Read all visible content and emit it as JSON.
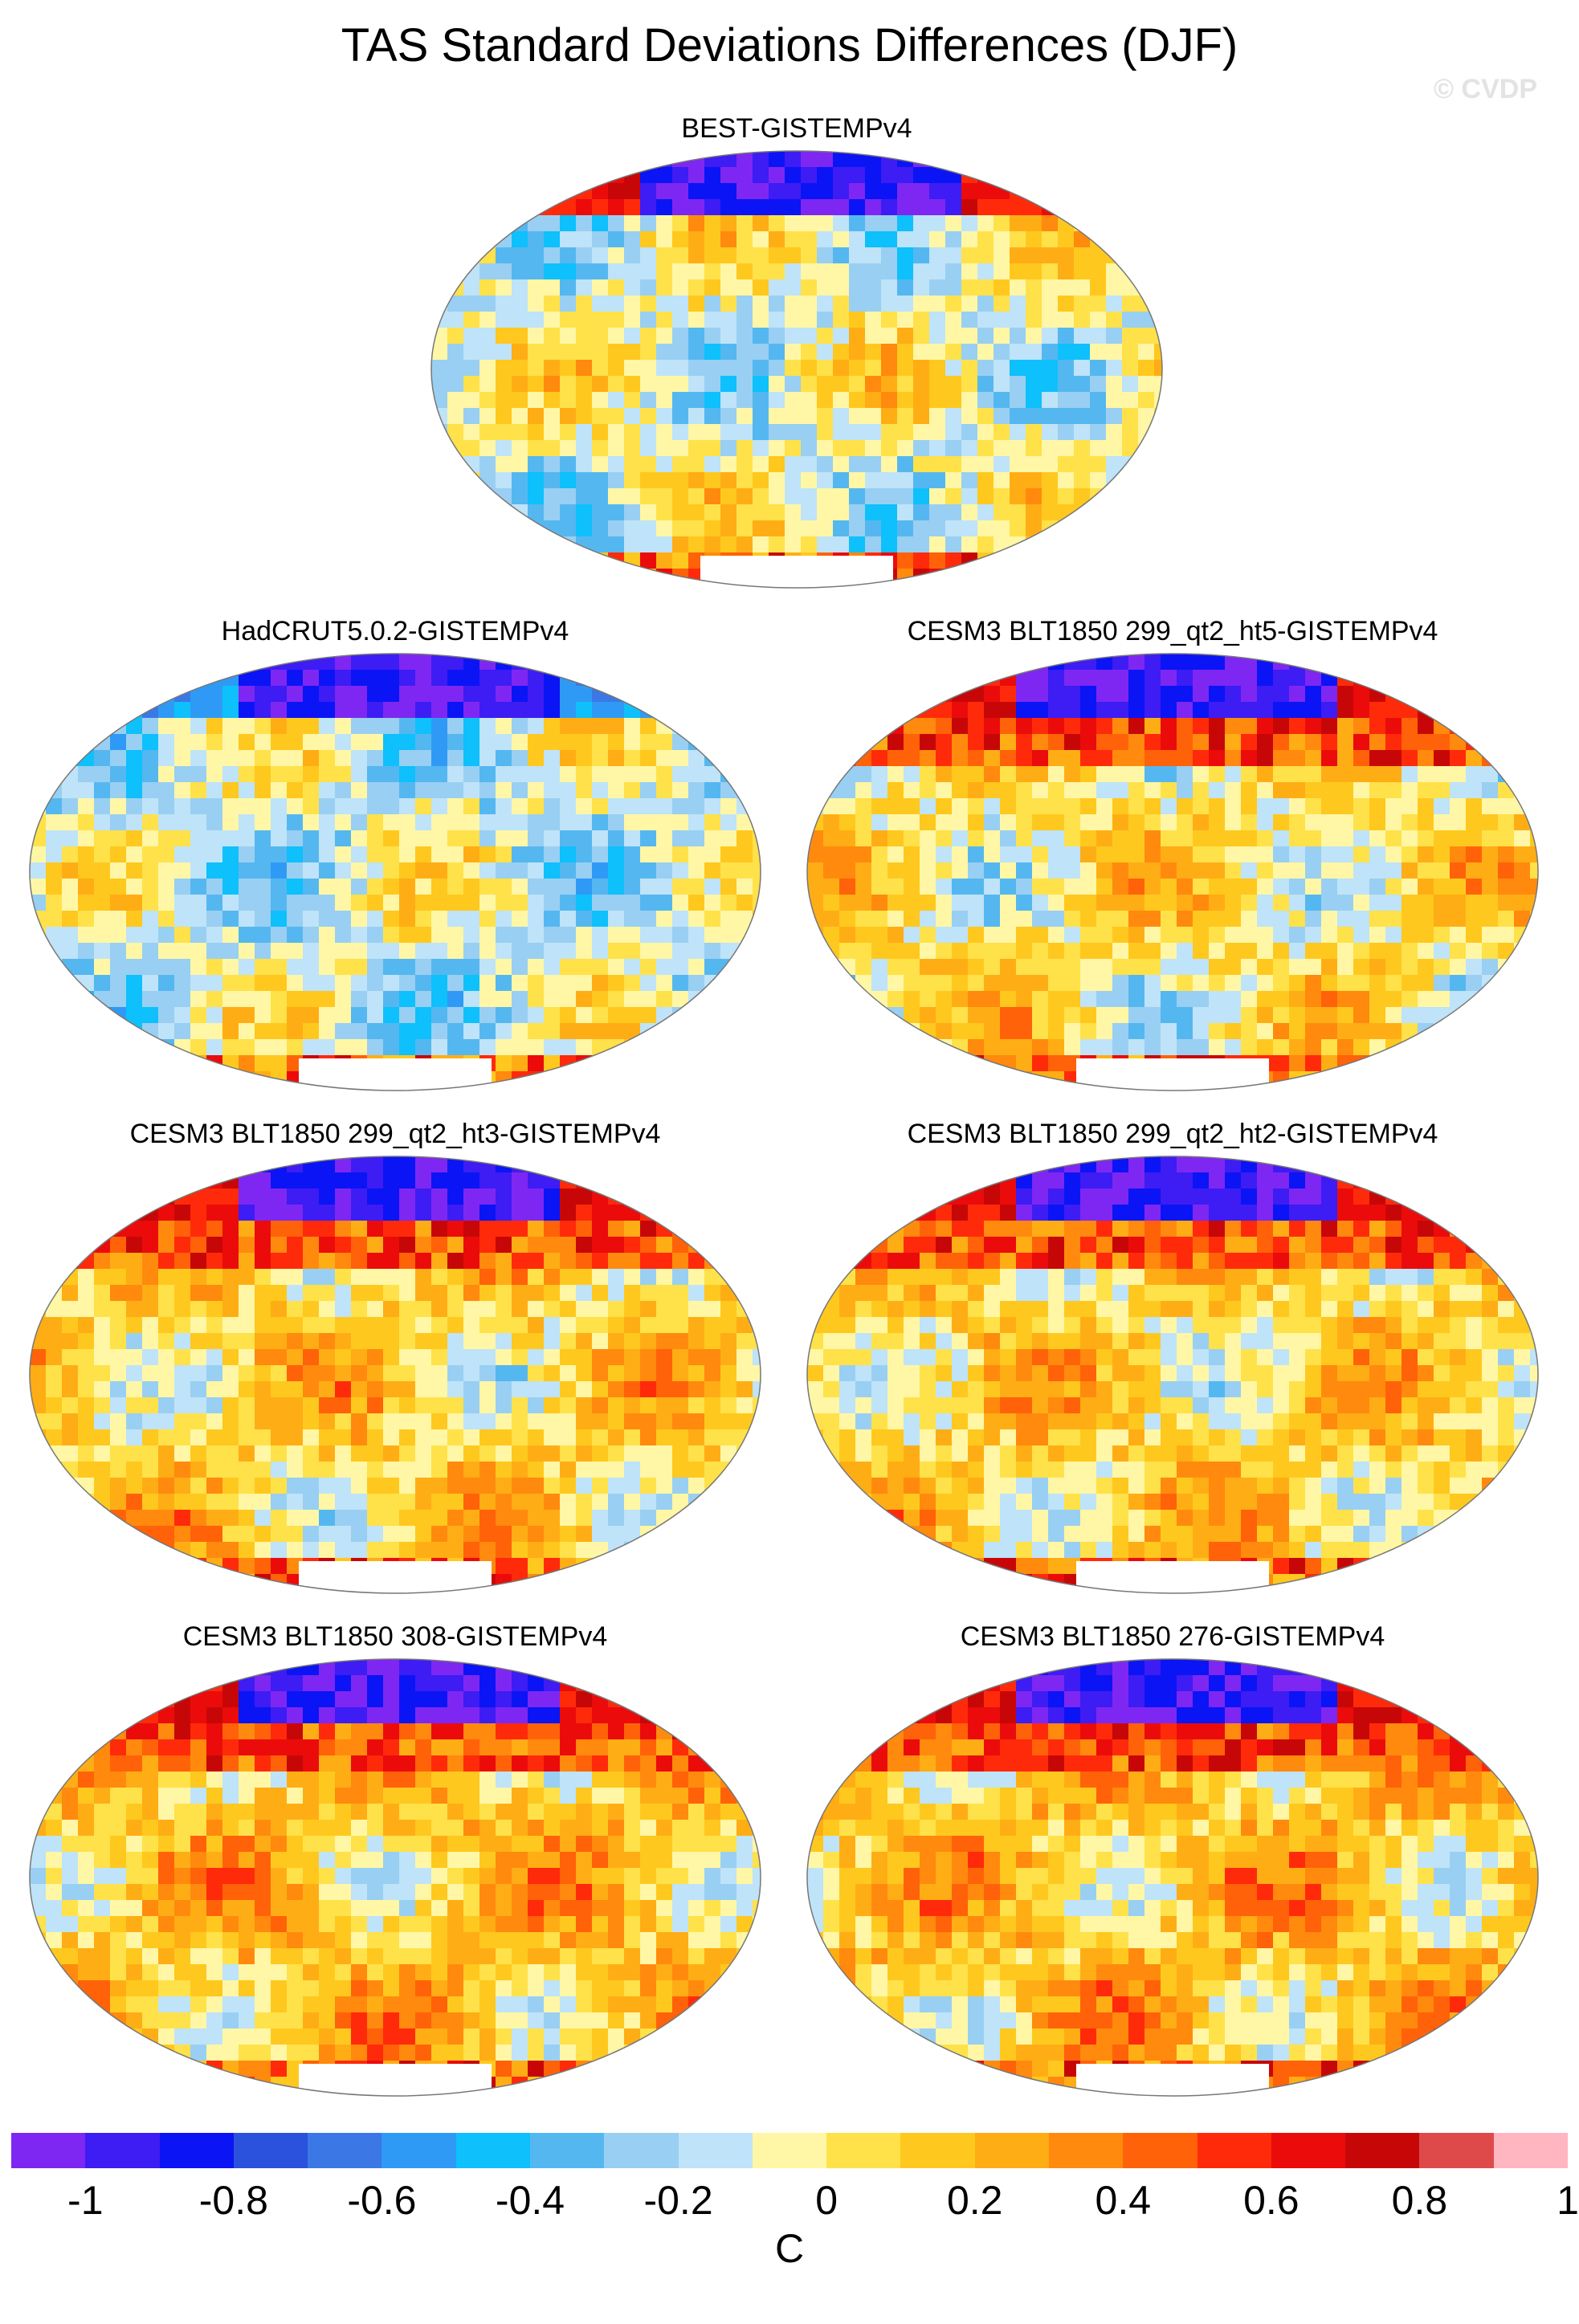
{
  "title": "TAS Standard Deviations Differences (DJF)",
  "watermark": "© CVDP",
  "panels": [
    {
      "title": "BEST-GISTEMPv4",
      "variant": 1
    },
    {
      "title": "HadCRUT5.0.2-GISTEMPv4",
      "variant": 2
    },
    {
      "title": "CESM3 BLT1850 299_qt2_ht5-GISTEMPv4",
      "variant": 3
    },
    {
      "title": "CESM3 BLT1850 299_qt2_ht3-GISTEMPv4",
      "variant": 4
    },
    {
      "title": "CESM3 BLT1850 299_qt2_ht2-GISTEMPv4",
      "variant": 4
    },
    {
      "title": "CESM3 BLT1850 308-GISTEMPv4",
      "variant": 5
    },
    {
      "title": "CESM3 BLT1850 276-GISTEMPv4",
      "variant": 5
    }
  ],
  "colorbar": {
    "colors": [
      "#7e27f2",
      "#3e1cf4",
      "#0b14f5",
      "#2a52dc",
      "#3b78e6",
      "#2f9af5",
      "#0ec0fb",
      "#55b7f0",
      "#99cff2",
      "#bfe3f8",
      "#fff7a5",
      "#ffe14a",
      "#ffc81e",
      "#ffad15",
      "#ff8a0d",
      "#ff6208",
      "#ff2a0a",
      "#eb0b0b",
      "#c70707",
      "#de4a4a",
      "#ffb6c1"
    ],
    "tick_labels": [
      "-1",
      "-0.8",
      "-0.6",
      "-0.4",
      "-0.2",
      "0",
      "0.2",
      "0.4",
      "0.6",
      "0.8",
      "1"
    ],
    "unit": "C"
  }
}
